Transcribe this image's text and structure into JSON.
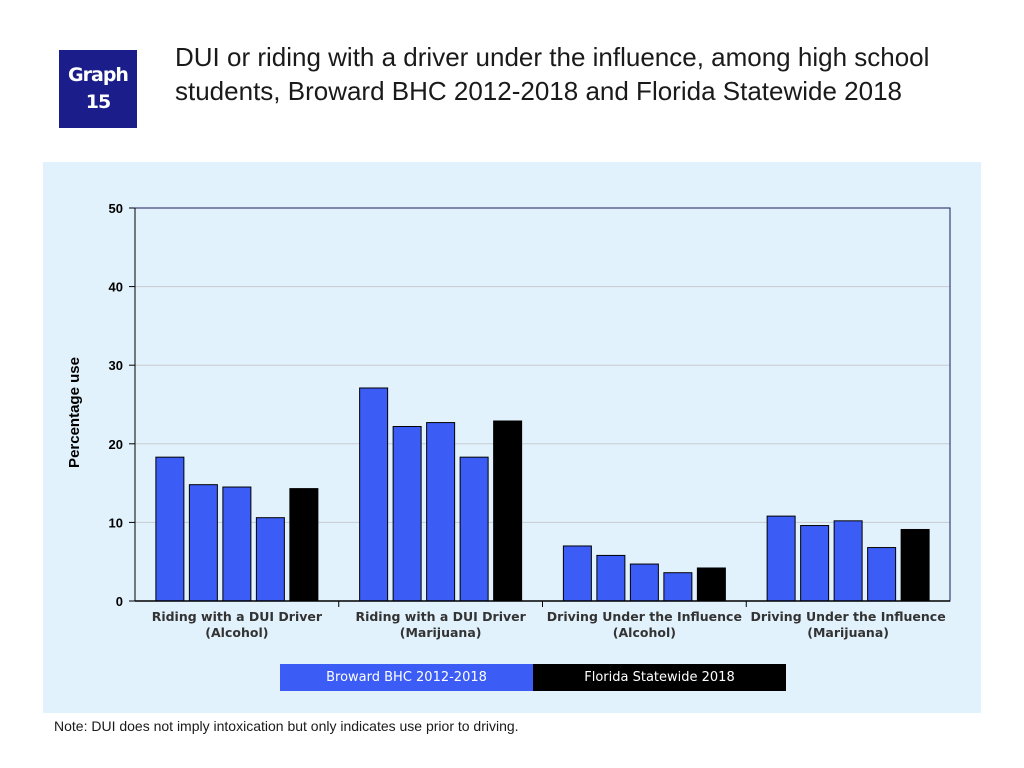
{
  "badge": {
    "line1": "Graph",
    "line2": "15"
  },
  "title": "DUI or riding with a driver under the influence, among high school students, Broward BHC 2012-2018 and Florida Statewide 2018",
  "note": "Note: DUI does not imply intoxication but only indicates use prior to driving.",
  "colors": {
    "broward": "#3b5cf5",
    "florida": "#000000",
    "panel": "#e2f2fc",
    "badge": "#1b1d8a"
  },
  "chart_data": {
    "type": "bar",
    "title": "",
    "xlabel": "",
    "ylabel": "Percentage use",
    "ylim": [
      0,
      50
    ],
    "yticks": [
      0,
      10,
      20,
      30,
      40,
      50
    ],
    "grid": true,
    "legend_position": "bottom",
    "categories": [
      [
        "Riding with a DUI Driver",
        "(Alcohol)"
      ],
      [
        "Riding with a DUI Driver",
        "(Marijuana)"
      ],
      [
        "Driving Under the Influence",
        "(Alcohol)"
      ],
      [
        "Driving Under the Influence",
        "(Marijuana)"
      ]
    ],
    "groups": [
      [
        18.3,
        14.8,
        14.5,
        10.6,
        14.3
      ],
      [
        27.1,
        22.2,
        22.7,
        18.3,
        22.9
      ],
      [
        7.0,
        5.8,
        4.7,
        3.6,
        4.2
      ],
      [
        10.8,
        9.6,
        10.2,
        6.8,
        9.1
      ]
    ],
    "bar_series": [
      "broward",
      "broward",
      "broward",
      "broward",
      "florida"
    ],
    "legend": [
      {
        "label": "Broward BHC 2012-2018",
        "series": "broward"
      },
      {
        "label": "Florida Statewide 2018",
        "series": "florida"
      }
    ]
  }
}
